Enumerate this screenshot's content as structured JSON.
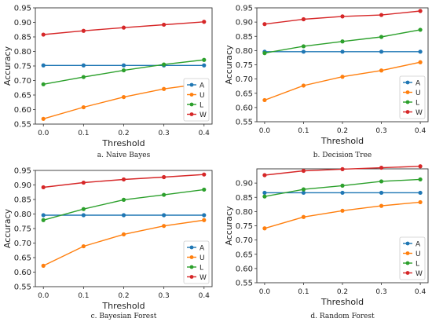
{
  "colors": {
    "A": "#1f77b4",
    "U": "#ff7f0e",
    "L": "#2ca02c",
    "W": "#d62728"
  },
  "chart_data": [
    {
      "type": "line",
      "caption": "a. Naive Bayes",
      "xlabel": "Threshold",
      "ylabel": "Accuracy",
      "x": [
        0.0,
        0.1,
        0.2,
        0.3,
        0.4
      ],
      "xticks": [
        "0.0",
        "0.1",
        "0.2",
        "0.3",
        "0.4"
      ],
      "ylim": [
        0.55,
        0.95
      ],
      "yticks": [
        "0.55",
        "0.60",
        "0.65",
        "0.70",
        "0.75",
        "0.80",
        "0.85",
        "0.90",
        "0.95"
      ],
      "legend_position": "bottom-right",
      "series": [
        {
          "name": "A",
          "values": [
            0.752,
            0.752,
            0.752,
            0.752,
            0.752
          ]
        },
        {
          "name": "U",
          "values": [
            0.568,
            0.608,
            0.643,
            0.671,
            0.69
          ]
        },
        {
          "name": "L",
          "values": [
            0.687,
            0.712,
            0.735,
            0.755,
            0.771
          ]
        },
        {
          "name": "W",
          "values": [
            0.858,
            0.871,
            0.882,
            0.892,
            0.902
          ]
        }
      ]
    },
    {
      "type": "line",
      "caption": "b. Decision Tree",
      "xlabel": "Threshold",
      "ylabel": "Accuracy",
      "x": [
        0.0,
        0.1,
        0.2,
        0.3,
        0.4
      ],
      "xticks": [
        "0.0",
        "0.1",
        "0.2",
        "0.3",
        "0.4"
      ],
      "ylim": [
        0.55,
        0.95
      ],
      "yticks": [
        "0.55",
        "0.60",
        "0.65",
        "0.70",
        "0.75",
        "0.80",
        "0.85",
        "0.90",
        "0.95"
      ],
      "legend_position": "bottom-right",
      "series": [
        {
          "name": "A",
          "values": [
            0.796,
            0.796,
            0.796,
            0.796,
            0.796
          ]
        },
        {
          "name": "U",
          "values": [
            0.626,
            0.677,
            0.708,
            0.73,
            0.759
          ]
        },
        {
          "name": "L",
          "values": [
            0.791,
            0.815,
            0.832,
            0.848,
            0.873
          ]
        },
        {
          "name": "W",
          "values": [
            0.893,
            0.91,
            0.92,
            0.925,
            0.939
          ]
        }
      ]
    },
    {
      "type": "line",
      "caption": "c. Bayesian Forest",
      "xlabel": "Threshold",
      "ylabel": "Accuracy",
      "x": [
        0.0,
        0.1,
        0.2,
        0.3,
        0.4
      ],
      "xticks": [
        "0.0",
        "0.1",
        "0.2",
        "0.3",
        "0.4"
      ],
      "ylim": [
        0.55,
        0.95
      ],
      "yticks": [
        "0.55",
        "0.60",
        "0.65",
        "0.70",
        "0.75",
        "0.80",
        "0.85",
        "0.90",
        "0.95"
      ],
      "legend_position": "bottom-right",
      "series": [
        {
          "name": "A",
          "values": [
            0.796,
            0.796,
            0.796,
            0.796,
            0.796
          ]
        },
        {
          "name": "U",
          "values": [
            0.622,
            0.689,
            0.73,
            0.759,
            0.779
          ]
        },
        {
          "name": "L",
          "values": [
            0.779,
            0.817,
            0.849,
            0.866,
            0.884
          ]
        },
        {
          "name": "W",
          "values": [
            0.892,
            0.908,
            0.919,
            0.927,
            0.936
          ]
        }
      ]
    },
    {
      "type": "line",
      "caption": "d. Random Forest",
      "xlabel": "Threshold",
      "ylabel": "Accuracy",
      "x": [
        0.0,
        0.1,
        0.2,
        0.3,
        0.4
      ],
      "xticks": [
        "0.0",
        "0.1",
        "0.2",
        "0.3",
        "0.4"
      ],
      "ylim": [
        0.55,
        0.95
      ],
      "yticks": [
        "0.55",
        "0.60",
        "0.65",
        "0.70",
        "0.75",
        "0.80",
        "0.85",
        "0.90"
      ],
      "legend_position": "bottom-right",
      "series": [
        {
          "name": "A",
          "values": [
            0.866,
            0.866,
            0.866,
            0.866,
            0.866
          ]
        },
        {
          "name": "U",
          "values": [
            0.741,
            0.781,
            0.803,
            0.82,
            0.833
          ]
        },
        {
          "name": "L",
          "values": [
            0.853,
            0.878,
            0.891,
            0.906,
            0.913
          ]
        },
        {
          "name": "W",
          "values": [
            0.928,
            0.943,
            0.949,
            0.954,
            0.959
          ]
        }
      ]
    }
  ]
}
